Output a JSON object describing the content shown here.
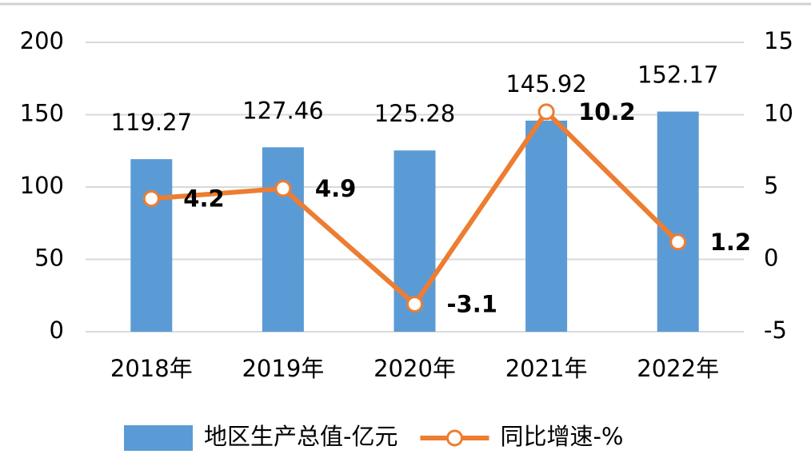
{
  "chart_data": {
    "type": "bar",
    "categories": [
      "2018年",
      "2019年",
      "2020年",
      "2021年",
      "2022年"
    ],
    "series": [
      {
        "name": "地区生产总值-亿元",
        "type": "bar",
        "color": "#5b9bd5",
        "values": [
          119.27,
          127.46,
          125.28,
          145.92,
          152.17
        ]
      },
      {
        "name": "同比增速-%",
        "type": "line",
        "axis": "y2",
        "color": "#ed7d31",
        "values": [
          4.2,
          4.9,
          -3.1,
          10.2,
          1.2
        ]
      }
    ],
    "ylim": [
      0,
      200
    ],
    "yticks": [
      0,
      50,
      100,
      150,
      200
    ],
    "y2lim": [
      -5,
      15
    ],
    "y2ticks": [
      -5,
      0,
      5,
      10,
      15
    ],
    "grid": true,
    "legend": "bottom"
  }
}
